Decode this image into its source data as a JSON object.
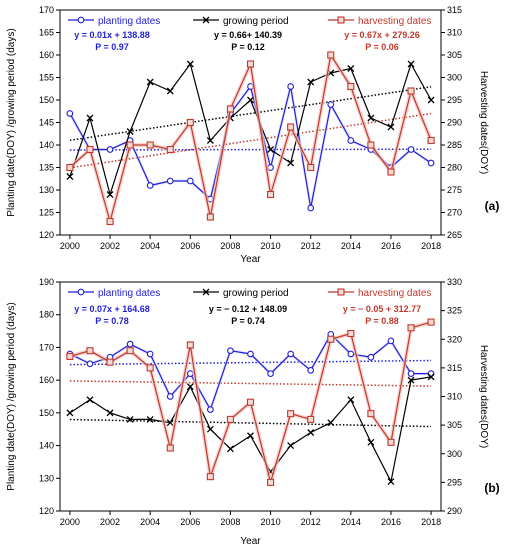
{
  "colors": {
    "planting": "#1f1fd6",
    "growing": "#000000",
    "harvesting": "#c0392b",
    "harvest_fill": "#f6d9d2",
    "harvest_halo": "#f3c2bd",
    "planting_halo": "#dcdcfa"
  },
  "chart_data": [
    {
      "type": "line",
      "panel": "(a)",
      "x": [
        2000,
        2001,
        2002,
        2003,
        2004,
        2005,
        2006,
        2007,
        2008,
        2009,
        2010,
        2011,
        2012,
        2013,
        2014,
        2015,
        2016,
        2017,
        2018
      ],
      "xlabel": "Year",
      "ylabel": "Planting date(DOY) /growing period (days)",
      "y2label": "Harvesting dates(DOY)",
      "ylim": [
        120,
        170
      ],
      "y2lim": [
        265,
        315
      ],
      "xticks": [
        2000,
        2002,
        2004,
        2006,
        2008,
        2010,
        2012,
        2014,
        2016,
        2018
      ],
      "yticks": [
        120,
        125,
        130,
        135,
        140,
        145,
        150,
        155,
        160,
        165,
        170
      ],
      "y2ticks": [
        265,
        270,
        275,
        280,
        285,
        290,
        295,
        300,
        305,
        310,
        315
      ],
      "series": [
        {
          "name": "planting dates",
          "axis": "left",
          "marker": "circle",
          "values": [
            147,
            139,
            139,
            141,
            131,
            132,
            132,
            128,
            147,
            153,
            135,
            153,
            126,
            149,
            141,
            139,
            135,
            139,
            136
          ],
          "equation": "y = 0.01x + 138.88",
          "p": "P = 0.97",
          "trend": [
            138.89,
            139.07
          ]
        },
        {
          "name": "growing period",
          "axis": "left",
          "marker": "x",
          "values": [
            133,
            146,
            129,
            143,
            154,
            152,
            158,
            141,
            146,
            150,
            139,
            136,
            154,
            156,
            157,
            146,
            144,
            158,
            150
          ],
          "equation": "y = 0.66+ 140.39",
          "p": "P = 0.12",
          "trend": [
            141.05,
            152.93
          ]
        },
        {
          "name": "harvesting dates",
          "axis": "right",
          "marker": "square",
          "values": [
            280,
            284,
            268,
            285,
            285,
            284,
            290,
            269,
            293,
            303,
            274,
            289,
            280,
            305,
            298,
            285,
            279,
            297,
            286
          ],
          "equation": "y = 0.67x + 279.26",
          "p": "P = 0.06",
          "trend": [
            279.93,
            292.0
          ]
        }
      ]
    },
    {
      "type": "line",
      "panel": "(b)",
      "x": [
        2000,
        2001,
        2002,
        2003,
        2004,
        2005,
        2006,
        2007,
        2008,
        2009,
        2010,
        2011,
        2012,
        2013,
        2014,
        2015,
        2016,
        2017,
        2018
      ],
      "xlabel": "Year",
      "ylabel": "Planting date(DOY) /growing period (days)",
      "y2label": "Harvesting dates(DOY)",
      "ylim": [
        120,
        190
      ],
      "y2lim": [
        290,
        330
      ],
      "xticks": [
        2000,
        2002,
        2004,
        2006,
        2008,
        2010,
        2012,
        2014,
        2016,
        2018
      ],
      "yticks": [
        120,
        130,
        140,
        150,
        160,
        170,
        180,
        190
      ],
      "y2ticks": [
        290,
        295,
        300,
        305,
        310,
        315,
        320,
        325,
        330
      ],
      "series": [
        {
          "name": "planting dates",
          "axis": "left",
          "marker": "circle",
          "values": [
            168,
            165,
            167,
            171,
            168,
            155,
            162,
            151,
            169,
            168,
            162,
            168,
            163,
            174,
            168,
            167,
            172,
            162,
            162
          ],
          "equation": "y = 0.07x + 164.68",
          "p": "P = 0.78",
          "trend": [
            164.75,
            166.0
          ]
        },
        {
          "name": "growing period",
          "axis": "left",
          "marker": "x",
          "values": [
            150,
            154,
            150,
            148,
            148,
            147,
            158,
            145,
            139,
            143,
            132,
            140,
            144,
            147,
            154,
            141,
            129,
            160,
            161
          ],
          "equation": "y = − 0.12 + 148.09",
          "p": "P = 0.74",
          "trend": [
            147.97,
            145.81
          ]
        },
        {
          "name": "harvesting dates",
          "axis": "right",
          "marker": "square",
          "values": [
            317,
            318,
            316,
            318,
            315,
            301,
            319,
            296,
            306,
            309,
            295,
            307,
            306,
            320,
            321,
            307,
            302,
            322,
            323
          ],
          "equation": "y = − 0.05 + 312.77",
          "p": "P = 0.88",
          "trend": [
            312.72,
            311.82
          ]
        }
      ]
    }
  ]
}
